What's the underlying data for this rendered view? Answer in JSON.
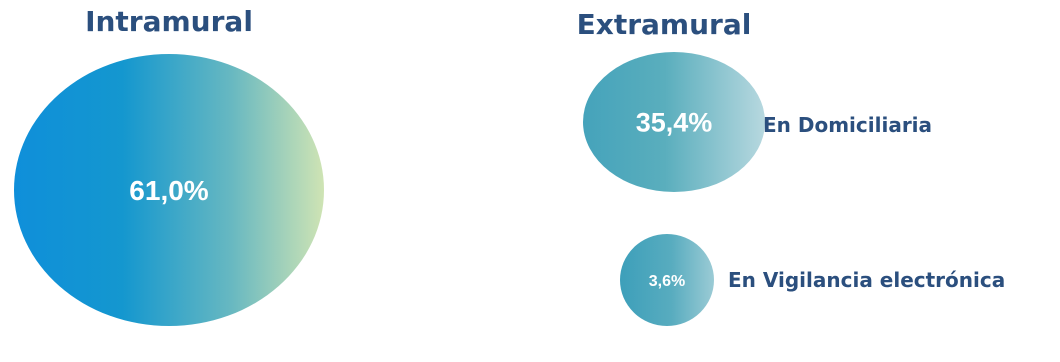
{
  "chart_data": {
    "type": "bubble",
    "groups": [
      {
        "title": "Intramural",
        "items": [
          {
            "value": 61.0,
            "label": "61,0%",
            "category": ""
          }
        ]
      },
      {
        "title": "Extramural",
        "items": [
          {
            "value": 35.4,
            "label": "35,4%",
            "category": "En Domiciliaria"
          },
          {
            "value": 3.6,
            "label": "3,6%",
            "category": "En Vigilancia electrónica"
          }
        ]
      }
    ],
    "colors": {
      "heading": "#2b4f7e",
      "value_text": "#ffffff",
      "gradient_start": "#1190d8",
      "gradient_mid": "#4aa8c0",
      "gradient_end": "#d2e6b8"
    }
  }
}
